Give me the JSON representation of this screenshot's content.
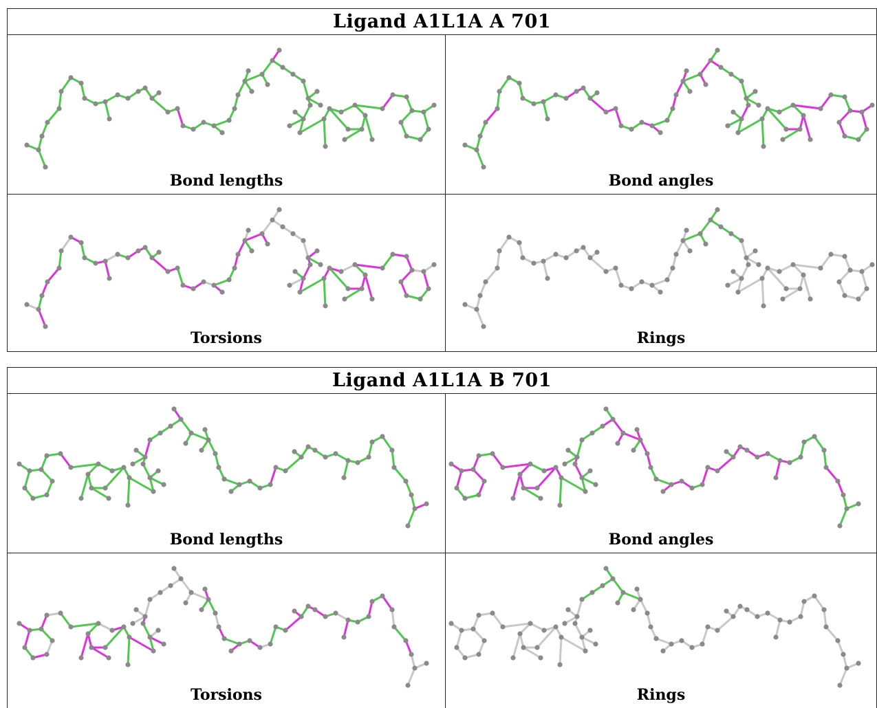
{
  "tables": [
    {
      "title": "Ligand A1L1A A 701",
      "panels": [
        {
          "caption": "Bond lengths",
          "colors": [
            "g",
            "g",
            "g",
            "g",
            "g",
            "g",
            "g",
            "g",
            "g",
            "g",
            "g",
            "g",
            "g",
            "g",
            "g",
            "g",
            "g",
            "g",
            "g",
            "g",
            "m",
            "g",
            "g",
            "g",
            "g",
            "g",
            "g",
            "g",
            "g",
            "g",
            "g",
            "g",
            "g",
            "g",
            "m",
            "g",
            "g",
            "g"
          ]
        },
        {
          "caption": "Bond angles",
          "colors": [
            "g",
            "g",
            "g",
            "g",
            "m",
            "g",
            "g",
            "g",
            "g",
            "g",
            "g",
            "g",
            "g",
            "g",
            "m",
            "m",
            "g",
            "g",
            "m",
            "m",
            "m",
            "g",
            "g",
            "m",
            "m",
            "g",
            "g",
            "m",
            "m",
            "m",
            "g",
            "g",
            "m",
            "m",
            "g",
            "m",
            "g",
            "g"
          ]
        },
        {
          "caption": "Torsions",
          "colors": [
            "w",
            "m",
            "g",
            "m",
            "m",
            "g",
            "w",
            "m",
            "g",
            "g",
            "m",
            "m",
            "w",
            "g",
            "m",
            "m",
            "g",
            "g",
            "m",
            "m",
            "g",
            "m",
            "m",
            "w",
            "m",
            "g",
            "g",
            "m",
            "m",
            "w",
            "g",
            "m",
            "m",
            "w",
            "w",
            "w",
            "w",
            "w"
          ]
        },
        {
          "caption": "Rings",
          "colors": [
            "w",
            "w",
            "w",
            "w",
            "w",
            "w",
            "w",
            "w",
            "w",
            "w",
            "w",
            "w",
            "w",
            "w",
            "w",
            "w",
            "w",
            "w",
            "w",
            "w",
            "w",
            "w",
            "w",
            "w",
            "w",
            "w",
            "w",
            "w",
            "w",
            "w",
            "w",
            "g",
            "g",
            "g",
            "g",
            "g",
            "g",
            "g"
          ]
        }
      ]
    },
    {
      "title": "Ligand A1L1A B 701",
      "panels": [
        {
          "caption": "Bond lengths",
          "colors": [
            "m",
            "g",
            "g",
            "g",
            "g",
            "g",
            "g",
            "g",
            "g",
            "g",
            "g",
            "g",
            "g",
            "g",
            "g",
            "g",
            "g",
            "g",
            "g",
            "g",
            "m",
            "g",
            "g",
            "g",
            "g",
            "g",
            "g",
            "g",
            "g",
            "g",
            "g",
            "g",
            "g",
            "g",
            "m",
            "g",
            "g",
            "g"
          ]
        },
        {
          "caption": "Bond angles",
          "colors": [
            "g",
            "g",
            "g",
            "m",
            "m",
            "g",
            "g",
            "g",
            "g",
            "g",
            "m",
            "m",
            "g",
            "m",
            "m",
            "m",
            "m",
            "g",
            "m",
            "m",
            "m",
            "g",
            "m",
            "m",
            "m",
            "g",
            "g",
            "m",
            "m",
            "m",
            "g",
            "m",
            "m",
            "m",
            "g",
            "m",
            "g",
            "g"
          ]
        },
        {
          "caption": "Torsions",
          "colors": [
            "w",
            "w",
            "w",
            "m",
            "g",
            "w",
            "m",
            "g",
            "m",
            "g",
            "g",
            "m",
            "w",
            "g",
            "m",
            "m",
            "g",
            "m",
            "m",
            "g",
            "g",
            "w",
            "m",
            "g",
            "m",
            "g",
            "m",
            "w",
            "g",
            "m",
            "g",
            "w",
            "w",
            "w",
            "w",
            "w",
            "w",
            "w"
          ]
        },
        {
          "caption": "Rings",
          "colors": [
            "w",
            "w",
            "w",
            "w",
            "w",
            "w",
            "w",
            "w",
            "w",
            "w",
            "w",
            "w",
            "w",
            "w",
            "w",
            "w",
            "w",
            "w",
            "w",
            "w",
            "w",
            "w",
            "w",
            "w",
            "w",
            "w",
            "w",
            "w",
            "w",
            "w",
            "w",
            "g",
            "g",
            "g",
            "g",
            "g",
            "g",
            "g"
          ]
        }
      ]
    }
  ],
  "bond_colors": {
    "g": "#4ec94e",
    "m": "#dd33dd",
    "w": "#c8c8c8",
    "atom": "#8a8a8a"
  }
}
